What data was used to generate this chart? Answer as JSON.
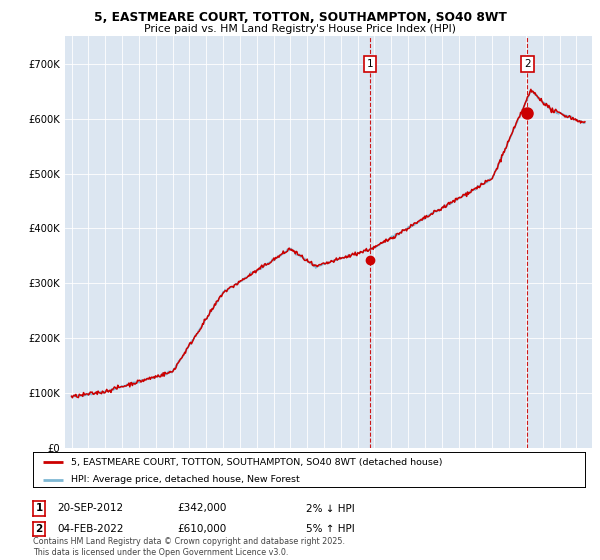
{
  "title_line1": "5, EASTMEARE COURT, TOTTON, SOUTHAMPTON, SO40 8WT",
  "title_line2": "Price paid vs. HM Land Registry's House Price Index (HPI)",
  "background_color": "#dce6f1",
  "plot_bg_color": "#dce6f1",
  "hpi_color": "#7eb8d4",
  "price_color": "#cc0000",
  "marker_color": "#cc0000",
  "legend_line1": "5, EASTMEARE COURT, TOTTON, SOUTHAMPTON, SO40 8WT (detached house)",
  "legend_line2": "HPI: Average price, detached house, New Forest",
  "annotation1": {
    "label": "1",
    "date": "20-SEP-2012",
    "price": "£342,000",
    "pct": "2% ↓ HPI"
  },
  "annotation2": {
    "label": "2",
    "date": "04-FEB-2022",
    "price": "£610,000",
    "pct": "5% ↑ HPI"
  },
  "footnote": "Contains HM Land Registry data © Crown copyright and database right 2025.\nThis data is licensed under the Open Government Licence v3.0.",
  "ylim_max": 750000,
  "marker1_year": 2012.72,
  "marker1_value": 342000,
  "marker2_year": 2022.08,
  "marker2_value": 610000,
  "ann_box_color": "#cc0000"
}
